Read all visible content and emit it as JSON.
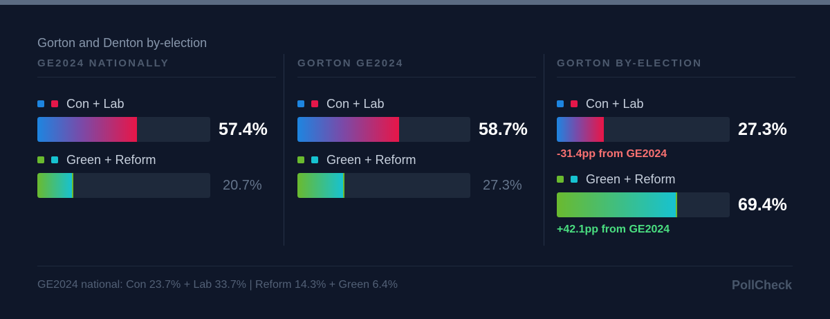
{
  "title": "Gorton and Denton by-election",
  "colors": {
    "con": "#1d85e0",
    "lab": "#e5174a",
    "green": "#6aba2f",
    "reform": "#17c2d0",
    "negative_change": "#f87171",
    "positive_change": "#4ade80"
  },
  "chart_data": {
    "type": "bar",
    "orientation": "horizontal",
    "xlim": [
      0,
      100
    ],
    "unit": "%",
    "groups": [
      {
        "header": "GE2024 NATIONALLY",
        "rows": [
          {
            "name": "Con + Lab",
            "value": 57.4,
            "label": "57.4%",
            "emphasis": true
          },
          {
            "name": "Green + Reform",
            "value": 20.7,
            "label": "20.7%",
            "emphasis": false
          }
        ]
      },
      {
        "header": "GORTON GE2024",
        "rows": [
          {
            "name": "Con + Lab",
            "value": 58.7,
            "label": "58.7%",
            "emphasis": true
          },
          {
            "name": "Green + Reform",
            "value": 27.3,
            "label": "27.3%",
            "emphasis": false
          }
        ]
      },
      {
        "header": "GORTON BY-ELECTION",
        "rows": [
          {
            "name": "Con + Lab",
            "value": 27.3,
            "label": "27.3%",
            "emphasis": true,
            "change": "-31.4pp from GE2024",
            "change_sign": "negative"
          },
          {
            "name": "Green + Reform",
            "value": 69.4,
            "label": "69.4%",
            "emphasis": true,
            "change": "+42.1pp from GE2024",
            "change_sign": "positive"
          }
        ]
      }
    ]
  },
  "footnote": "GE2024 national: Con 23.7% + Lab 33.7% | Reform 14.3% + Green 6.4%",
  "brand": "PollCheck"
}
